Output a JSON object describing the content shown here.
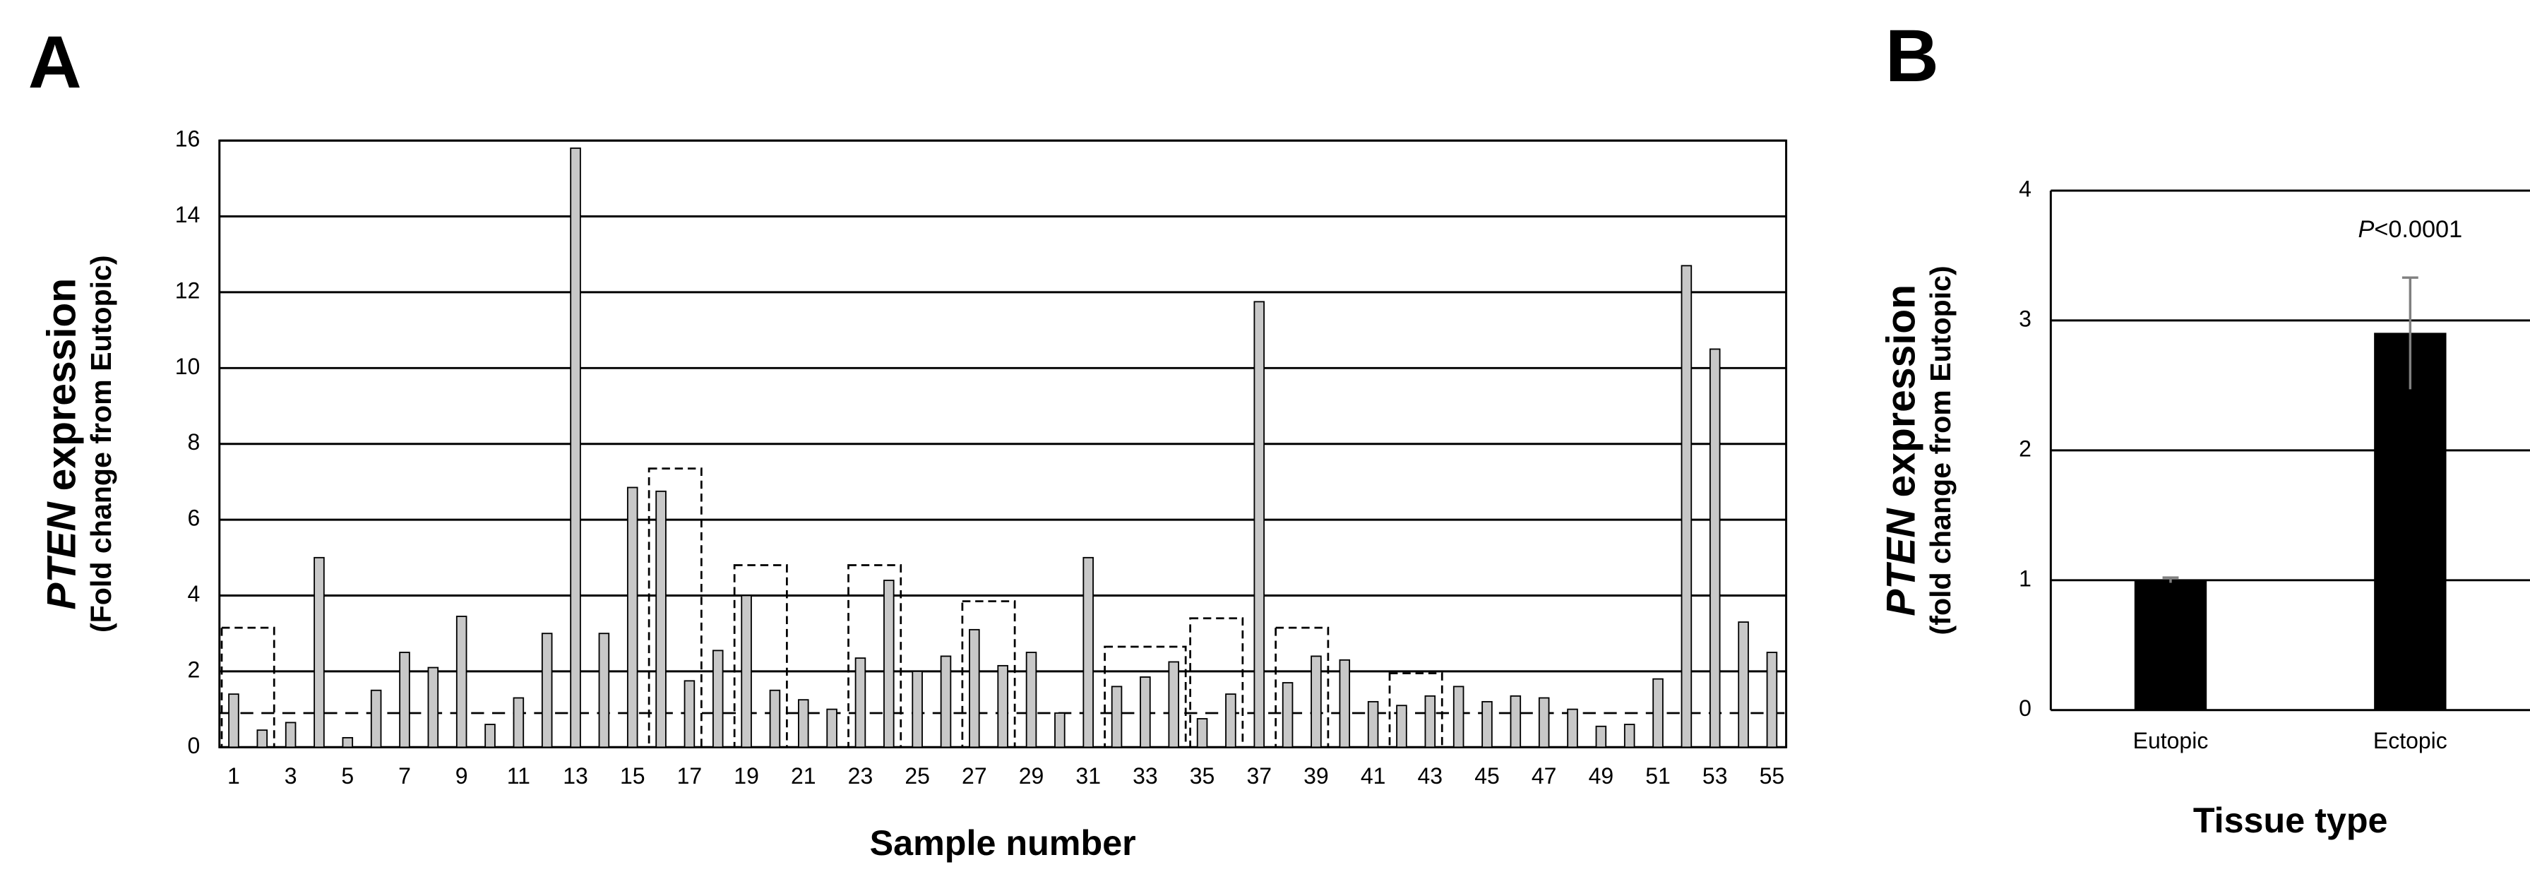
{
  "chart_data": [
    {
      "type": "bar",
      "panel_label": "A",
      "ylabel_italic": "PTEN",
      "ylabel": "expression",
      "ylabel_sub": "(Fold change from Eutopic)",
      "xlabel": "Sample number",
      "categories": [
        "1",
        null,
        "3",
        null,
        "5",
        null,
        "7",
        null,
        "9",
        null,
        "11",
        null,
        "13",
        null,
        "15",
        null,
        "17",
        null,
        "19",
        null,
        "21",
        null,
        "23",
        null,
        "25",
        null,
        "27",
        null,
        "29",
        null,
        "31",
        null,
        "33",
        null,
        "35",
        null,
        "37",
        null,
        "39",
        null,
        "41",
        null,
        "43",
        null,
        "45",
        null,
        "47",
        null,
        "49",
        null,
        "51",
        null,
        "53",
        null,
        "55"
      ],
      "values": [
        1.4,
        0.45,
        0.65,
        5.0,
        0.25,
        1.5,
        2.5,
        2.1,
        3.45,
        0.6,
        1.3,
        3.0,
        15.8,
        3.0,
        6.85,
        6.75,
        1.75,
        2.55,
        4.0,
        1.5,
        1.25,
        1.0,
        2.35,
        4.4,
        2.0,
        2.4,
        3.1,
        2.15,
        2.5,
        0.9,
        5.0,
        1.6,
        1.85,
        2.25,
        0.75,
        1.4,
        11.75,
        1.7,
        2.4,
        2.3,
        1.2,
        1.1,
        1.35,
        1.6,
        1.2,
        1.35,
        1.3,
        1.0,
        0.55,
        0.6,
        1.8,
        12.7,
        10.5,
        3.3,
        2.5
      ],
      "color": "#c8c8c8",
      "ylim": [
        0,
        16
      ],
      "yticks": [
        0,
        2,
        4,
        6,
        8,
        10,
        12,
        14,
        16
      ],
      "grid": true,
      "threshold": 0.9,
      "boxes": [
        {
          "from": 1,
          "to": 2,
          "top": 3.15
        },
        {
          "from": 16,
          "to": 17,
          "top": 7.35
        },
        {
          "from": 19,
          "to": 20,
          "top": 4.8
        },
        {
          "from": 23,
          "to": 24,
          "top": 4.8
        },
        {
          "from": 27,
          "to": 28,
          "top": 3.85
        },
        {
          "from": 32,
          "to": 34,
          "top": 2.65
        },
        {
          "from": 35,
          "to": 36,
          "top": 3.4
        },
        {
          "from": 38,
          "to": 39,
          "top": 3.15
        },
        {
          "from": 42,
          "to": 43,
          "top": 1.95
        }
      ]
    },
    {
      "type": "bar",
      "panel_label": "B",
      "ylabel_italic": "PTEN",
      "ylabel": "expression",
      "ylabel_sub": "(fold change from Eutopic)",
      "xlabel": "Tissue type",
      "categories": [
        "Eutopic",
        "Ectopic"
      ],
      "values": [
        1.0,
        2.9
      ],
      "errors": [
        0.02,
        0.43
      ],
      "color": "#000000",
      "error_color": "#808080",
      "annotation_italic": "P",
      "annotation": "<0.0001",
      "ylim": [
        0,
        4
      ],
      "yticks": [
        0,
        1,
        2,
        3,
        4
      ],
      "grid": true
    }
  ]
}
